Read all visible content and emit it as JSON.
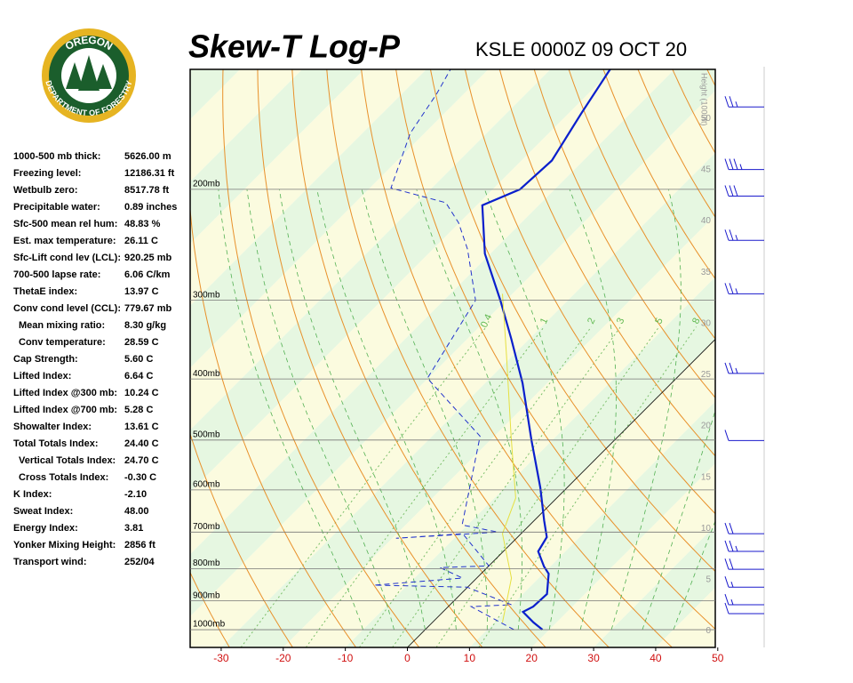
{
  "logo": {
    "top": "OREGON",
    "bottom": "DEPARTMENT OF FORESTRY"
  },
  "indices": [
    {
      "label": "1000-500 mb thick:",
      "value": "5626.00 m"
    },
    {
      "label": "Freezing level:",
      "value": "12186.31 ft"
    },
    {
      "label": "Wetbulb zero:",
      "value": "8517.78 ft"
    },
    {
      "label": "Precipitable water:",
      "value": "0.89 inches"
    },
    {
      "label": "Sfc-500 mean rel hum:",
      "value": "48.83 %"
    },
    {
      "label": "Est. max temperature:",
      "value": "26.11 C"
    },
    {
      "label": "Sfc-Lift cond lev (LCL):",
      "value": "920.25 mb"
    },
    {
      "label": "700-500 lapse rate:",
      "value": "6.06 C/km"
    },
    {
      "label": "ThetaE index:",
      "value": "13.97 C"
    },
    {
      "label": "Conv cond level (CCL):",
      "value": "779.67 mb"
    },
    {
      "label": "Mean mixing ratio:",
      "value": "8.30 g/kg",
      "sub": true
    },
    {
      "label": "Conv temperature:",
      "value": "28.59 C",
      "sub": true
    },
    {
      "label": "Cap Strength:",
      "value": "5.60 C"
    },
    {
      "label": "Lifted Index:",
      "value": "6.64 C"
    },
    {
      "label": "Lifted Index @300 mb:",
      "value": "10.24 C"
    },
    {
      "label": "Lifted Index @700 mb:",
      "value": "5.28 C"
    },
    {
      "label": "Showalter Index:",
      "value": "13.61 C"
    },
    {
      "label": "Total Totals Index:",
      "value": "24.40 C"
    },
    {
      "label": "Vertical Totals Index:",
      "value": "24.70 C",
      "sub": true
    },
    {
      "label": "Cross Totals Index:",
      "value": "-0.30 C",
      "sub": true
    },
    {
      "label": "K Index:",
      "value": "-2.10"
    },
    {
      "label": "Sweat Index:",
      "value": "48.00"
    },
    {
      "label": "Energy Index:",
      "value": "3.81"
    },
    {
      "label": "Yonker Mixing Height:",
      "value": "2856 ft"
    },
    {
      "label": "Transport wind:",
      "value": "252/04"
    }
  ],
  "chart_data": {
    "type": "skewt",
    "title": "Skew-T Log-P",
    "subtitle": "KSLE 0000Z 09 OCT 20",
    "xlim": [
      -35,
      49.6
    ],
    "xticks": [
      -30,
      -20,
      -10,
      0,
      10,
      20,
      30,
      40,
      50
    ],
    "ylim": [
      1067,
      129
    ],
    "log_y": true,
    "yticks": [
      {
        "value": 200,
        "label": "200mb"
      },
      {
        "value": 300,
        "label": "300mb"
      },
      {
        "value": 400,
        "label": "400mb"
      },
      {
        "value": 500,
        "label": "500mb"
      },
      {
        "value": 600,
        "label": "600mb"
      },
      {
        "value": 700,
        "label": "700mb"
      },
      {
        "value": 800,
        "label": "800mb"
      },
      {
        "value": 900,
        "label": "900mb"
      },
      {
        "value": 1000,
        "label": "1000mb"
      }
    ],
    "height_label": "Height (1000ft)",
    "height_lim": [
      -1.6,
      54.8
    ],
    "height_ticks": [
      0,
      5,
      10,
      15,
      20,
      25,
      30,
      35,
      40,
      45,
      50
    ],
    "mixing_ratio_lines": [
      0.4,
      1,
      2,
      3,
      5,
      8
    ],
    "series": [
      {
        "color": "#0a1fcc",
        "style": "solid",
        "pressure": [
          1000,
          974,
          937,
          919,
          878,
          815,
          794,
          751,
          713,
          671,
          595,
          500,
          406,
          345,
          300,
          253,
          212,
          200,
          180,
          151,
          129
        ],
        "temperature": [
          18.9,
          16.3,
          12.9,
          13.7,
          13.9,
          10.9,
          9.0,
          5.6,
          4.7,
          1.6,
          -4.3,
          -13.4,
          -24.0,
          -33.0,
          -40.9,
          -50.9,
          -59.1,
          -55.6,
          -55.1,
          -58.0,
          -60.4
        ]
      },
      {
        "color": "#2233cc",
        "style": "dashed",
        "pressure": [
          1000,
          919,
          913,
          856,
          850,
          828,
          797,
          792,
          704,
          716,
          700,
          682,
          493,
          399,
          300,
          249,
          226,
          210,
          199,
          163,
          141,
          129
        ],
        "temperature": [
          14.3,
          3.7,
          9.9,
          -0.1,
          -15.4,
          -2.3,
          -7.6,
          0,
          -9.4,
          -19.4,
          -4.0,
          -10.9,
          -22.3,
          -40.1,
          -44.9,
          -54.4,
          -60.1,
          -65.4,
          -76.6,
          -82.3,
          -84.4,
          -86.1
        ]
      },
      {
        "color": "#e6e040",
        "style": "solid",
        "pressure": [
          974,
          828,
          704,
          618,
          493,
          368,
          293
        ],
        "temperature": [
          11.3,
          5.6,
          -3.0,
          -6.6,
          -17.3,
          -30.9,
          -41.6
        ]
      }
    ],
    "winds": {
      "color": "#1a1acc",
      "pressure": [
        148,
        186,
        205,
        241,
        293,
        392,
        501,
        704,
        751,
        802,
        856,
        913,
        943
      ],
      "speed": [
        25,
        35,
        30,
        25,
        25,
        25,
        10,
        20,
        25,
        20,
        15,
        15,
        10
      ]
    }
  }
}
